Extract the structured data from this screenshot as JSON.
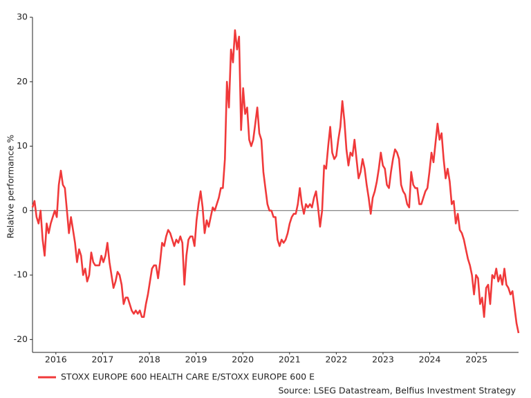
{
  "chart_data": {
    "type": "line",
    "ylabel": "Relative performance %",
    "xlim": [
      2015.5,
      2025.9
    ],
    "xticks": [
      2016,
      2017,
      2018,
      2019,
      2020,
      2021,
      2022,
      2023,
      2024,
      2025
    ],
    "ylim": [
      -22,
      30
    ],
    "yticks": [
      -20,
      -10,
      0,
      10,
      20,
      30
    ],
    "reference_line": 0,
    "source": "Source: LSEG Datastream, Belfius Investment Strategy",
    "x": [
      2015.5,
      2015.543,
      2015.587,
      2015.63,
      2015.673,
      2015.717,
      2015.76,
      2015.803,
      2015.847,
      2015.89,
      2015.933,
      2015.977,
      2016.02,
      2016.063,
      2016.107,
      2016.15,
      2016.193,
      2016.237,
      2016.28,
      2016.323,
      2016.367,
      2016.41,
      2016.453,
      2016.497,
      2016.54,
      2016.583,
      2016.627,
      2016.67,
      2016.713,
      2016.757,
      2016.8,
      2016.843,
      2016.887,
      2016.93,
      2016.973,
      2017.017,
      2017.06,
      2017.103,
      2017.147,
      2017.19,
      2017.233,
      2017.277,
      2017.32,
      2017.363,
      2017.407,
      2017.45,
      2017.493,
      2017.537,
      2017.58,
      2017.623,
      2017.667,
      2017.71,
      2017.753,
      2017.797,
      2017.84,
      2017.883,
      2017.927,
      2017.97,
      2018.013,
      2018.057,
      2018.1,
      2018.143,
      2018.187,
      2018.23,
      2018.273,
      2018.317,
      2018.36,
      2018.403,
      2018.447,
      2018.49,
      2018.533,
      2018.577,
      2018.62,
      2018.663,
      2018.707,
      2018.75,
      2018.793,
      2018.837,
      2018.88,
      2018.923,
      2018.967,
      2019.01,
      2019.053,
      2019.097,
      2019.14,
      2019.183,
      2019.227,
      2019.27,
      2019.313,
      2019.357,
      2019.4,
      2019.443,
      2019.487,
      2019.53,
      2019.573,
      2019.617,
      2019.66,
      2019.703,
      2019.747,
      2019.79,
      2019.833,
      2019.877,
      2019.92,
      2019.963,
      2020.007,
      2020.05,
      2020.093,
      2020.137,
      2020.18,
      2020.223,
      2020.267,
      2020.31,
      2020.353,
      2020.397,
      2020.44,
      2020.483,
      2020.527,
      2020.57,
      2020.613,
      2020.657,
      2020.7,
      2020.743,
      2020.787,
      2020.83,
      2020.873,
      2020.917,
      2020.96,
      2021.003,
      2021.047,
      2021.09,
      2021.133,
      2021.177,
      2021.22,
      2021.263,
      2021.307,
      2021.35,
      2021.393,
      2021.437,
      2021.48,
      2021.523,
      2021.567,
      2021.61,
      2021.653,
      2021.697,
      2021.74,
      2021.783,
      2021.827,
      2021.87,
      2021.913,
      2021.957,
      2022,
      2022.043,
      2022.087,
      2022.13,
      2022.173,
      2022.217,
      2022.26,
      2022.303,
      2022.347,
      2022.39,
      2022.433,
      2022.477,
      2022.52,
      2022.563,
      2022.607,
      2022.65,
      2022.693,
      2022.737,
      2022.78,
      2022.823,
      2022.867,
      2022.91,
      2022.953,
      2022.997,
      2023.04,
      2023.083,
      2023.127,
      2023.17,
      2023.213,
      2023.257,
      2023.3,
      2023.343,
      2023.387,
      2023.43,
      2023.473,
      2023.517,
      2023.56,
      2023.603,
      2023.647,
      2023.69,
      2023.733,
      2023.777,
      2023.82,
      2023.863,
      2023.907,
      2023.95,
      2023.993,
      2024.037,
      2024.08,
      2024.123,
      2024.167,
      2024.21,
      2024.253,
      2024.297,
      2024.34,
      2024.383,
      2024.427,
      2024.47,
      2024.513,
      2024.557,
      2024.6,
      2024.643,
      2024.687,
      2024.73,
      2024.773,
      2024.817,
      2024.86,
      2024.903,
      2024.947,
      2024.99,
      2025.033,
      2025.077,
      2025.12,
      2025.163,
      2025.207,
      2025.25,
      2025.293,
      2025.337,
      2025.38,
      2025.423,
      2025.467,
      2025.51,
      2025.553,
      2025.597,
      2025.64,
      2025.683,
      2025.727,
      2025.77,
      2025.813,
      2025.857,
      2025.9
    ],
    "series": [
      {
        "name": "STOXX EUROPE 600 HEALTH CARE E/STOXX EUROPE 600 E",
        "color": "#f0393a",
        "values": [
          0.5,
          1.5,
          -1,
          -2,
          0,
          -4.5,
          -7,
          -2,
          -3.5,
          -2,
          -1,
          0,
          -1,
          4,
          6.2,
          4,
          3.5,
          0,
          -3.5,
          -1,
          -3,
          -5,
          -8,
          -6,
          -7,
          -10,
          -9,
          -11,
          -10,
          -6.5,
          -8,
          -8.5,
          -8.5,
          -8.5,
          -7,
          -8,
          -7,
          -5,
          -8,
          -10,
          -12,
          -11,
          -9.5,
          -10,
          -11.5,
          -14.5,
          -13.5,
          -13.5,
          -14.5,
          -15.5,
          -16,
          -15.5,
          -16,
          -15.5,
          -16.5,
          -16.5,
          -14.5,
          -13,
          -11,
          -9,
          -8.5,
          -8.5,
          -10.5,
          -8,
          -5,
          -5.5,
          -4,
          -3,
          -3.5,
          -4.5,
          -5.5,
          -4.5,
          -5,
          -4,
          -5,
          -11.5,
          -7,
          -4.5,
          -4,
          -4,
          -5.5,
          -1.5,
          1,
          3,
          0.5,
          -3.5,
          -1.5,
          -2.5,
          -1,
          0.5,
          0,
          1,
          2,
          3.5,
          3.5,
          8,
          20,
          16,
          25,
          23,
          28,
          25,
          27,
          12.5,
          19,
          15,
          16,
          11,
          10,
          11,
          13.5,
          16,
          12,
          11,
          6,
          3.5,
          1,
          0,
          0,
          -1,
          -1,
          -4.5,
          -5.5,
          -4.5,
          -5,
          -4.5,
          -3.5,
          -2,
          -1,
          -0.5,
          -0.5,
          1,
          3.5,
          1,
          -0.5,
          1,
          0.5,
          1,
          0.5,
          2,
          3,
          0.5,
          -2.5,
          0,
          7,
          6.5,
          10,
          13,
          9,
          8,
          8.5,
          11,
          13,
          17,
          14,
          9.5,
          7,
          9,
          8.5,
          11,
          8,
          5,
          6,
          8,
          6.5,
          4,
          2,
          -0.5,
          2,
          3,
          4.5,
          6.5,
          9,
          7,
          6.5,
          4,
          3.5,
          6,
          8,
          9.5,
          9,
          8,
          4,
          3,
          2.5,
          1,
          0.5,
          6,
          4,
          3.5,
          3.5,
          1,
          1,
          2,
          3,
          3.5,
          6,
          9,
          7.5,
          10.5,
          13.5,
          11,
          12,
          8,
          5,
          6.5,
          4.5,
          1,
          1.5,
          -2,
          -0.5,
          -3,
          -3.5,
          -4.5,
          -6,
          -7.5,
          -8.5,
          -10,
          -13,
          -10,
          -10.5,
          -14.5,
          -13.5,
          -16.5,
          -12,
          -11.5,
          -14.5,
          -10,
          -10.5,
          -9,
          -11,
          -10,
          -11.5,
          -9,
          -11.5,
          -12,
          -13,
          -12.5,
          -15,
          -17.5,
          -19
        ]
      }
    ]
  }
}
